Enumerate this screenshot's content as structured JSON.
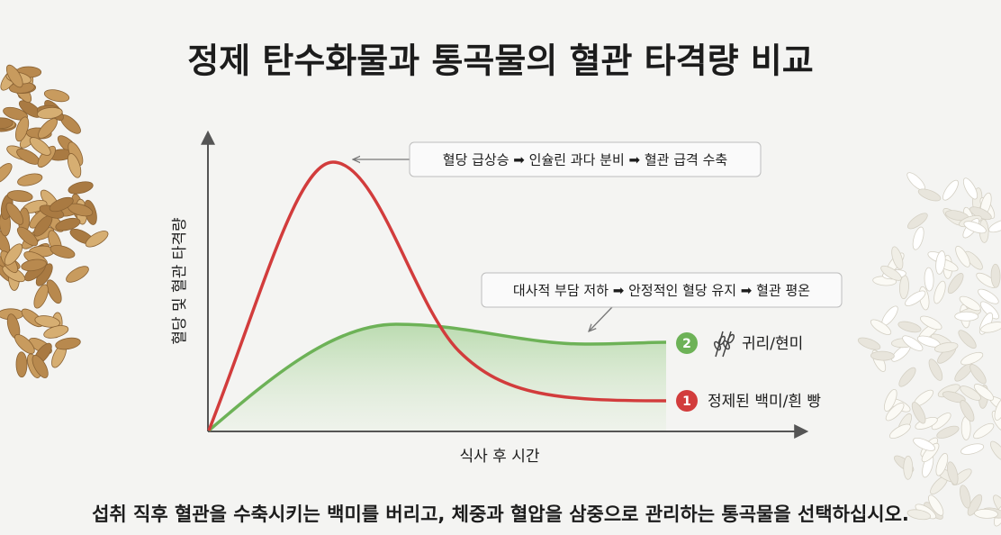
{
  "header": {
    "title": "정제 탄수화물과 통곡물의 혈관 타격량 비교"
  },
  "axes": {
    "y_label": "혈당 및 혈관 타격량",
    "x_label": "식사 후 시간"
  },
  "callouts": [
    {
      "text": "혈당 급상승 ➡ 인슐린 과다 분비 ➡ 혈관 급격 수축"
    },
    {
      "text": "대사적 부담 저하 ➡ 안정적인 혈당 유지 ➡ 혈관 평온"
    }
  ],
  "legend": [
    {
      "number": "2",
      "label": "귀리/현미"
    },
    {
      "number": "1",
      "label": "정제된 백미/흰 빵"
    }
  ],
  "footer": {
    "text": "섭취 직후 혈관을 수축시키는 백미를 버리고, 체중과 혈압을 삼중으로 관리하는 통곡물을 선택하십시오."
  }
}
